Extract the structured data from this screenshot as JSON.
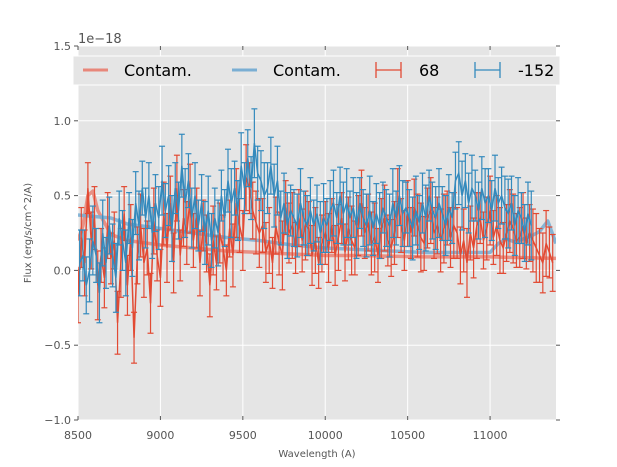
{
  "chart_data": {
    "type": "line",
    "title": "",
    "xlabel": "Wavelength (A)",
    "ylabel": "Flux (erg/s/cm^2/A)",
    "offset_text": "1e−18",
    "xlim": [
      8500,
      11400
    ],
    "ylim": [
      -1.0,
      1.5
    ],
    "y_scale": 1e-18,
    "grid": true,
    "background": "#e5e5e5",
    "xticks": [
      8500,
      9000,
      9500,
      10000,
      10500,
      11000
    ],
    "xtick_labels": [
      "8500",
      "9000",
      "9500",
      "10000",
      "10500",
      "11000"
    ],
    "yticks": [
      -1.0,
      -0.5,
      0.0,
      0.5,
      1.0,
      1.5
    ],
    "ytick_labels": [
      "−1.0",
      "−0.5",
      "0.0",
      "0.5",
      "1.0",
      "1.5"
    ],
    "legend": {
      "placement": "top",
      "entries": [
        {
          "label": "Contam.",
          "kind": "line",
          "color": "#e8877a"
        },
        {
          "label": "Contam.",
          "kind": "line",
          "color": "#7aaed3"
        },
        {
          "label": "68",
          "kind": "errorbar",
          "color": "#e24a33"
        },
        {
          "label": "-152",
          "kind": "errorbar",
          "color": "#348abd"
        }
      ]
    },
    "series": [
      {
        "name": "Contam. (68)",
        "kind": "line",
        "color": "#e8877a",
        "x": [
          8500,
          8530,
          8560,
          8590,
          8620,
          8700,
          8800,
          9000,
          9200,
          9400,
          9600,
          9800,
          10000,
          10200,
          10400,
          10600,
          10800,
          11000,
          11200,
          11400
        ],
        "y": [
          0.2,
          0.3,
          0.5,
          0.53,
          0.4,
          0.24,
          0.2,
          0.17,
          0.15,
          0.13,
          0.12,
          0.11,
          0.1,
          0.1,
          0.095,
          0.09,
          0.09,
          0.09,
          0.085,
          0.08
        ]
      },
      {
        "name": "Contam. (-152)",
        "kind": "line",
        "color": "#7aaed3",
        "x": [
          8500,
          8600,
          8700,
          8800,
          9000,
          9200,
          9400,
          9600,
          9800,
          10000,
          10200,
          10400,
          10600,
          10800,
          11000,
          11050,
          11100,
          11150,
          11200,
          11250,
          11300,
          11350,
          11400
        ],
        "y": [
          0.37,
          0.36,
          0.35,
          0.31,
          0.28,
          0.25,
          0.22,
          0.2,
          0.17,
          0.15,
          0.14,
          0.13,
          0.12,
          0.12,
          0.12,
          0.18,
          0.21,
          0.19,
          0.21,
          0.23,
          0.26,
          0.33,
          0.18
        ]
      },
      {
        "name": "68",
        "kind": "errorbar",
        "color": "#e24a33",
        "x_start": 8500,
        "x_step": 20,
        "y": [
          -0.17,
          0.22,
          0.05,
          0.55,
          0.2,
          0.35,
          -0.1,
          0.1,
          -0.05,
          0.3,
          0.08,
          0.2,
          -0.35,
          0.05,
          0.38,
          -0.1,
          0.22,
          -0.45,
          0.1,
          0.3,
          0.05,
          0.15,
          -0.22,
          0.33,
          0.1,
          -0.05,
          0.38,
          0.15,
          0.45,
          0.05,
          0.55,
          0.1,
          0.35,
          0.25,
          0.48,
          0.2,
          0.35,
          0.05,
          0.3,
          0.18,
          -0.1,
          0.2,
          0.05,
          0.25,
          0.15,
          0.0,
          0.28,
          0.1,
          0.45,
          0.3,
          0.2,
          0.62,
          0.55,
          0.4,
          0.32,
          0.25,
          0.3,
          0.12,
          0.2,
          0.05,
          0.3,
          0.18,
          0.1,
          0.42,
          0.25,
          0.3,
          0.15,
          0.35,
          0.2,
          0.3,
          0.28,
          0.1,
          0.2,
          0.05,
          0.18,
          0.25,
          0.15,
          0.3,
          0.1,
          0.22,
          0.35,
          0.12,
          0.28,
          0.2,
          0.15,
          0.3,
          0.45,
          0.25,
          0.32,
          0.18,
          0.22,
          0.1,
          0.28,
          0.35,
          0.2,
          0.15,
          0.25,
          0.45,
          0.3,
          0.2,
          0.38,
          0.25,
          0.42,
          0.3,
          0.22,
          0.18,
          0.35,
          0.4,
          0.25,
          0.3,
          0.2,
          0.28,
          0.35,
          0.22,
          0.3,
          0.25,
          0.1,
          0.2,
          0.05,
          0.25,
          0.15,
          0.3,
          0.35,
          0.2,
          0.28,
          0.4,
          0.22,
          0.3,
          0.2,
          0.15,
          0.25,
          0.33,
          0.28,
          0.2,
          0.22,
          0.3,
          0.18,
          0.25,
          0.2,
          0.15,
          0.1,
          0.05,
          0.18,
          0.12,
          0.05
        ],
        "yerr": 0.2
      },
      {
        "name": "-152",
        "kind": "errorbar",
        "color": "#348abd",
        "x_start": 8510,
        "x_step": 20,
        "y": [
          0.05,
          0.1,
          -0.1,
          0.0,
          0.2,
          0.1,
          -0.15,
          0.25,
          0.05,
          0.3,
          0.1,
          -0.05,
          0.35,
          0.2,
          0.05,
          0.35,
          0.15,
          0.45,
          0.3,
          0.55,
          0.35,
          0.5,
          0.25,
          0.45,
          0.35,
          0.6,
          0.4,
          0.5,
          0.28,
          0.55,
          0.4,
          0.7,
          0.45,
          0.6,
          0.35,
          0.5,
          0.3,
          0.45,
          0.25,
          0.4,
          0.2,
          0.35,
          0.25,
          0.5,
          0.35,
          0.6,
          0.45,
          0.55,
          0.4,
          0.7,
          0.55,
          0.75,
          0.55,
          0.85,
          0.65,
          0.6,
          0.5,
          0.55,
          0.7,
          0.5,
          0.6,
          0.35,
          0.45,
          0.3,
          0.4,
          0.35,
          0.3,
          0.45,
          0.35,
          0.3,
          0.4,
          0.3,
          0.38,
          0.25,
          0.35,
          0.3,
          0.4,
          0.45,
          0.35,
          0.5,
          0.38,
          0.45,
          0.35,
          0.42,
          0.3,
          0.45,
          0.35,
          0.3,
          0.4,
          0.28,
          0.38,
          0.3,
          0.42,
          0.35,
          0.3,
          0.45,
          0.35,
          0.5,
          0.38,
          0.42,
          0.35,
          0.28,
          0.4,
          0.32,
          0.45,
          0.35,
          0.5,
          0.4,
          0.35,
          0.45,
          0.38,
          0.3,
          0.42,
          0.35,
          0.6,
          0.65,
          0.5,
          0.6,
          0.45,
          0.55,
          0.5,
          0.4,
          0.55,
          0.45,
          0.5,
          0.4,
          0.55,
          0.45,
          0.5,
          0.42,
          0.38,
          0.45,
          0.3,
          0.4,
          0.35,
          0.25,
          0.38,
          0.3
        ],
        "yerr": 0.2
      }
    ]
  }
}
